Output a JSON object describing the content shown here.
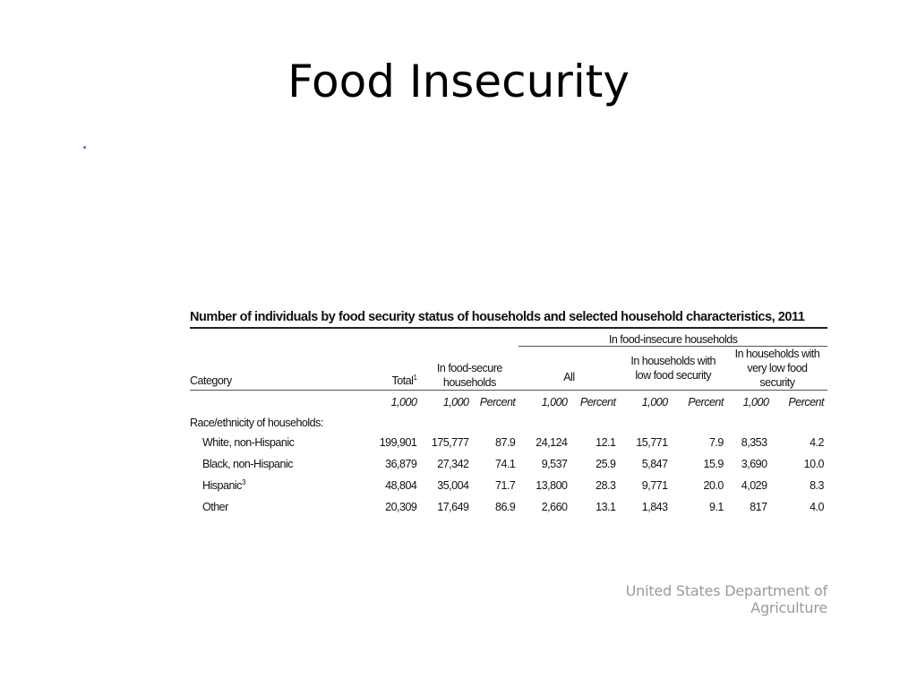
{
  "slide": {
    "title": "Food Insecurity",
    "source": "United States Department of Agriculture"
  },
  "table": {
    "caption": "Number of individuals by food security status of households and selected household characteristics, 2011",
    "group_header": "In food-insecure households",
    "headers": {
      "category": "Category",
      "total": "Total",
      "total_sup": "1",
      "food_secure": "In food-secure households",
      "all": "All",
      "low": "In households with low food security",
      "very_low": "In households with very low food security"
    },
    "units": [
      "1,000",
      "1,000",
      "Percent",
      "1,000",
      "Percent",
      "1,000",
      "Percent",
      "1,000",
      "Percent"
    ],
    "section_label": "Race/ethnicity of households:",
    "rows": [
      {
        "category": "White, non-Hispanic",
        "sup": "",
        "values": [
          "199,901",
          "175,777",
          "87.9",
          "24,124",
          "12.1",
          "15,771",
          "7.9",
          "8,353",
          "4.2"
        ]
      },
      {
        "category": "Black, non-Hispanic",
        "sup": "",
        "values": [
          "36,879",
          "27,342",
          "74.1",
          "9,537",
          "25.9",
          "5,847",
          "15.9",
          "3,690",
          "10.0"
        ]
      },
      {
        "category": "Hispanic",
        "sup": "3",
        "values": [
          "48,804",
          "35,004",
          "71.7",
          "13,800",
          "28.3",
          "9,771",
          "20.0",
          "4,029",
          "8.3"
        ]
      },
      {
        "category": "Other",
        "sup": "",
        "values": [
          "20,309",
          "17,649",
          "86.9",
          "2,660",
          "13.1",
          "1,843",
          "9.1",
          "817",
          "4.0"
        ]
      }
    ]
  }
}
